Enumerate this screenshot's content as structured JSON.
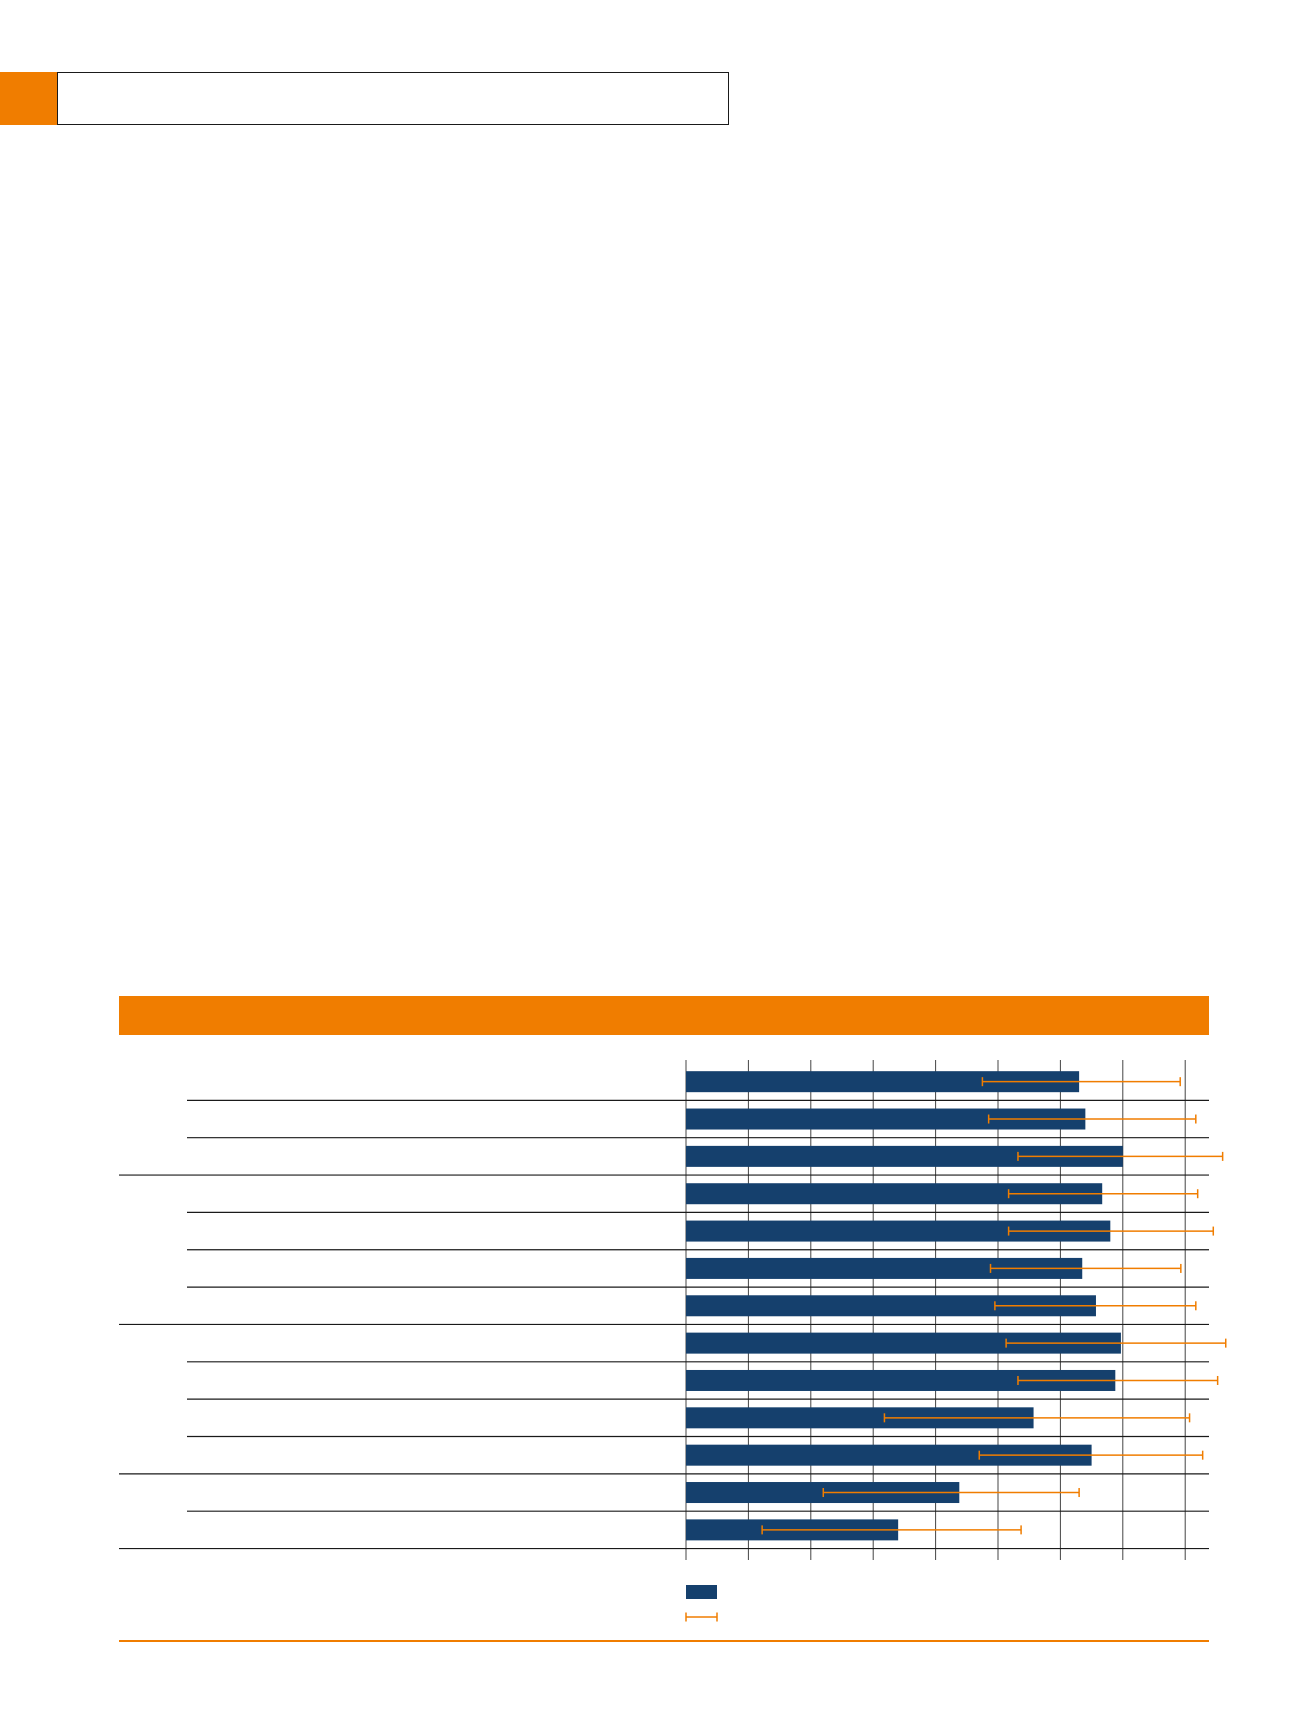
{
  "colors": {
    "accent": "#F07D00",
    "bar": "#15406D",
    "error_bar": "#F07D00",
    "rule": "#1a1a1a"
  },
  "header": {
    "section_title": ""
  },
  "figure": {
    "caption": ""
  },
  "chart_data": {
    "type": "bar",
    "orientation": "horizontal",
    "title": "",
    "xlabel": "",
    "ylabel": "",
    "xlim": [
      0,
      8
    ],
    "x_grid": true,
    "x_ticks": [
      0,
      1,
      2,
      3,
      4,
      5,
      6,
      7,
      8
    ],
    "x_tick_labels": [
      "",
      "",
      "",
      "",
      "",
      "",
      "",
      "",
      ""
    ],
    "legend_position": "bottom-left",
    "groups": [
      {
        "label": "",
        "size": 3
      },
      {
        "label": "",
        "size": 4
      },
      {
        "label": "",
        "size": 4
      },
      {
        "label": "",
        "size": 2
      }
    ],
    "categories": [
      "",
      "",
      "",
      "",
      "",
      "",
      "",
      "",
      "",
      "",
      "",
      "",
      ""
    ],
    "series": [
      {
        "name": "",
        "kind": "bar",
        "values": [
          6.3,
          6.4,
          7.0,
          6.67,
          6.8,
          6.35,
          6.57,
          6.97,
          6.88,
          5.57,
          6.5,
          4.38,
          3.4
        ]
      },
      {
        "name": "",
        "kind": "error_bar",
        "lower": [
          4.75,
          4.85,
          5.32,
          5.17,
          5.17,
          4.88,
          4.95,
          5.13,
          5.32,
          3.18,
          4.7,
          2.2,
          1.22
        ],
        "upper": [
          7.92,
          8.17,
          8.6,
          8.2,
          8.45,
          7.93,
          8.17,
          8.65,
          8.52,
          8.07,
          8.28,
          6.3,
          5.37
        ]
      }
    ]
  }
}
